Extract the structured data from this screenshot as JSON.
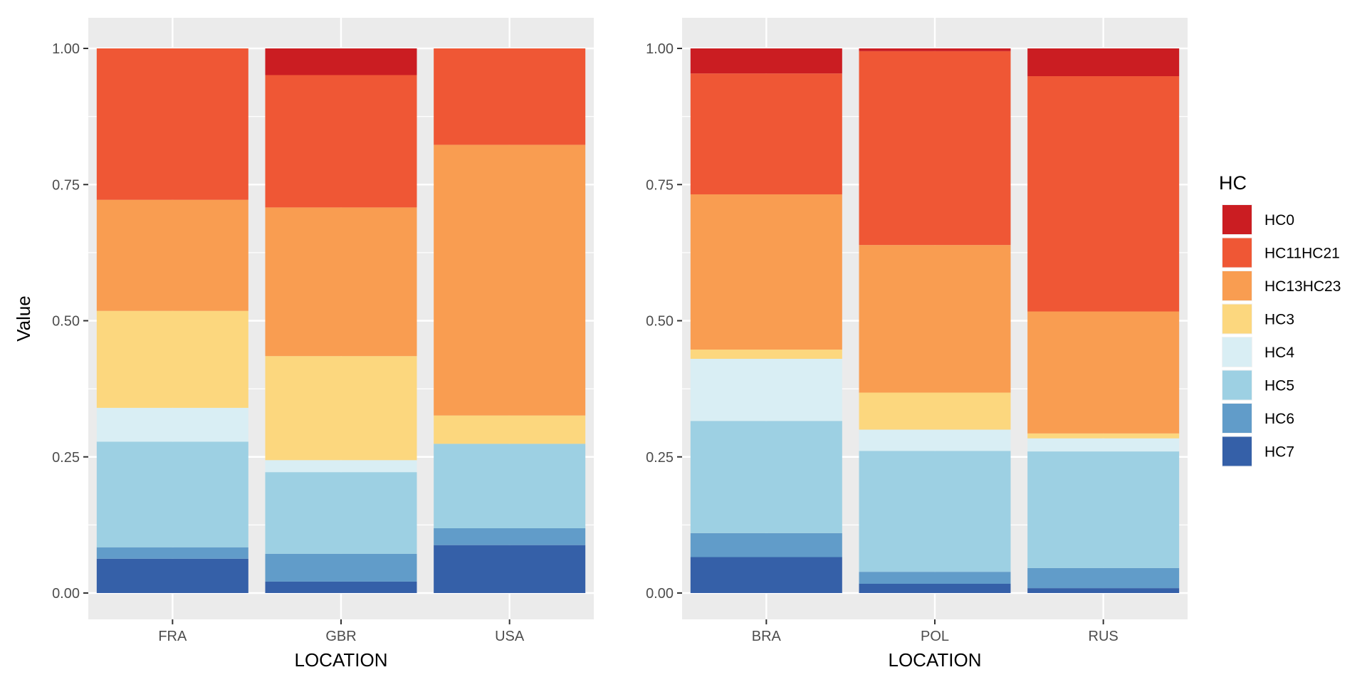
{
  "chart_data": [
    {
      "type": "bar",
      "stacked": "fill",
      "xlabel": "LOCATION",
      "ylabel": "Value",
      "ylim": [
        0,
        1
      ],
      "yticks": [
        "0.00",
        "0.25",
        "0.50",
        "0.75",
        "1.00"
      ],
      "grid": true,
      "categories": [
        "FRA",
        "GBR",
        "USA"
      ],
      "series": [
        {
          "name": "HC7",
          "values": [
            0.063,
            0.021,
            0.088
          ]
        },
        {
          "name": "HC6",
          "values": [
            0.021,
            0.051,
            0.031
          ]
        },
        {
          "name": "HC5",
          "values": [
            0.194,
            0.15,
            0.155
          ]
        },
        {
          "name": "HC4",
          "values": [
            0.062,
            0.022,
            0.0
          ]
        },
        {
          "name": "HC3",
          "values": [
            0.178,
            0.191,
            0.052
          ]
        },
        {
          "name": "HC13HC23",
          "values": [
            0.204,
            0.273,
            0.497
          ]
        },
        {
          "name": "HC11HC21",
          "values": [
            0.278,
            0.243,
            0.177
          ]
        },
        {
          "name": "HC0",
          "values": [
            0.0,
            0.049,
            0.0
          ]
        }
      ]
    },
    {
      "type": "bar",
      "stacked": "fill",
      "xlabel": "LOCATION",
      "ylabel": "",
      "ylim": [
        0,
        1
      ],
      "yticks": [
        "0.00",
        "0.25",
        "0.50",
        "0.75",
        "1.00"
      ],
      "grid": true,
      "categories": [
        "BRA",
        "POL",
        "RUS"
      ],
      "series": [
        {
          "name": "HC7",
          "values": [
            0.066,
            0.017,
            0.009
          ]
        },
        {
          "name": "HC6",
          "values": [
            0.044,
            0.022,
            0.037
          ]
        },
        {
          "name": "HC5",
          "values": [
            0.206,
            0.222,
            0.214
          ]
        },
        {
          "name": "HC4",
          "values": [
            0.114,
            0.039,
            0.024
          ]
        },
        {
          "name": "HC3",
          "values": [
            0.017,
            0.068,
            0.009
          ]
        },
        {
          "name": "HC13HC23",
          "values": [
            0.285,
            0.271,
            0.224
          ]
        },
        {
          "name": "HC11HC21",
          "values": [
            0.222,
            0.356,
            0.432
          ]
        },
        {
          "name": "HC0",
          "values": [
            0.046,
            0.005,
            0.051
          ]
        }
      ]
    }
  ],
  "legend": {
    "title": "HC",
    "position": "right",
    "items": [
      {
        "name": "HC0",
        "color": "#cb1d22"
      },
      {
        "name": "HC11HC21",
        "color": "#ef5735"
      },
      {
        "name": "HC13HC23",
        "color": "#f99d51"
      },
      {
        "name": "HC3",
        "color": "#fcd77e"
      },
      {
        "name": "HC4",
        "color": "#d9eef4"
      },
      {
        "name": "HC5",
        "color": "#9dd0e3"
      },
      {
        "name": "HC6",
        "color": "#619cc9"
      },
      {
        "name": "HC7",
        "color": "#3560a8"
      }
    ]
  }
}
